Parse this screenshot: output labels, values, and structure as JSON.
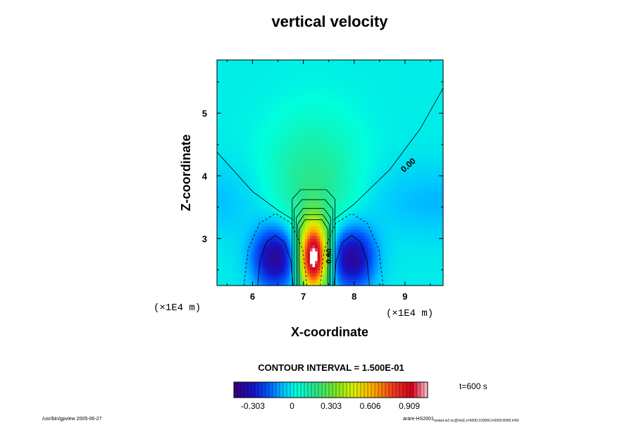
{
  "chart_data": {
    "type": "heatmap",
    "title": "vertical velocity",
    "xlabel": "X-coordinate",
    "ylabel": "Z-coordinate",
    "x_unit": "(×1E4 m)",
    "z_unit": "(×1E4 m)",
    "xlim": [
      5.3,
      9.75
    ],
    "zlim": [
      2.25,
      5.85
    ],
    "x_ticks": [
      "6",
      "7",
      "8",
      "9"
    ],
    "x_tick_values": [
      6,
      7,
      8,
      9
    ],
    "z_ticks": [
      "3",
      "4",
      "5"
    ],
    "z_tick_values": [
      3,
      4,
      5
    ],
    "contour_interval_text": "CONTOUR INTERVAL = 1.500E-01",
    "contour_label": "0.00",
    "contour_label_lower": "0.60",
    "colorbar": {
      "min": -0.45,
      "max": 1.05,
      "ticks": [
        "-0.303",
        "0",
        "0.303",
        "0.606",
        "0.909"
      ],
      "tick_values": [
        -0.303,
        0,
        0.303,
        0.606,
        0.909
      ]
    },
    "time_label": "t=600 s",
    "field_features": {
      "updraft_center": [
        7.2,
        2.7
      ],
      "updraft_peak": 1.05,
      "downdraft_centers": [
        [
          6.45,
          2.7
        ],
        [
          7.95,
          2.7
        ]
      ],
      "downdraft_min": -0.45,
      "zero_contour": {
        "left": [
          [
            5.3,
            4.38
          ],
          [
            6.0,
            3.75
          ],
          [
            6.5,
            3.45
          ],
          [
            6.8,
            3.3
          ]
        ],
        "right": [
          [
            7.6,
            3.3
          ],
          [
            8.0,
            3.55
          ],
          [
            8.7,
            4.1
          ],
          [
            9.3,
            4.75
          ],
          [
            9.75,
            5.4
          ]
        ]
      }
    }
  },
  "footer": {
    "left": "/usr/bin/gpview 2005-06-27",
    "right": "arare-HS2001",
    "right_sub": "restart-w2.nc@VelZ,z=5000:100000,t=2000:8000,t=60"
  }
}
